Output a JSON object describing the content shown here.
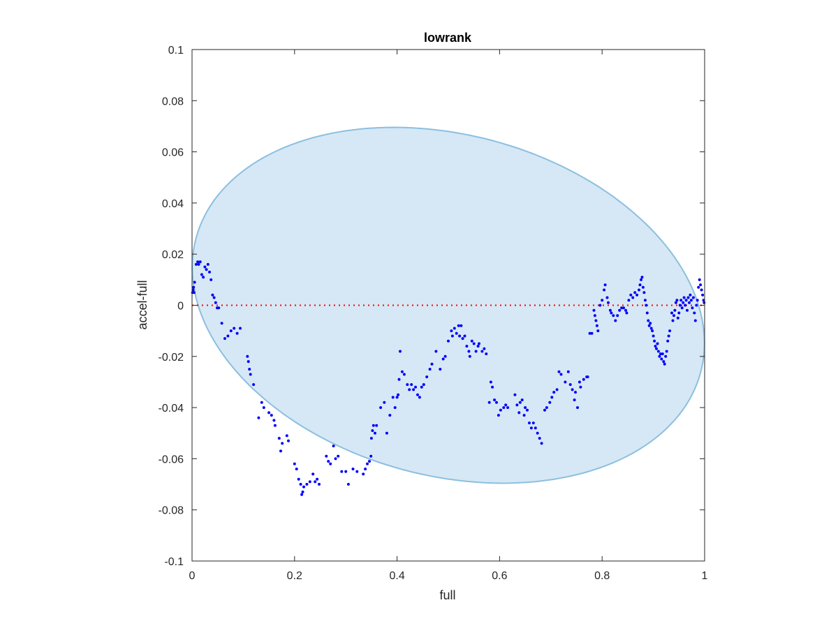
{
  "chart_data": {
    "type": "scatter",
    "title": "lowrank",
    "xlabel": "full",
    "ylabel": "accel-full",
    "xlim": [
      0,
      1
    ],
    "ylim": [
      -0.1,
      0.1
    ],
    "xticks": [
      0,
      0.2,
      0.4,
      0.6,
      0.8,
      1
    ],
    "xtick_labels": [
      "0",
      "0.2",
      "0.4",
      "0.6",
      "0.8",
      "1"
    ],
    "yticks": [
      -0.1,
      -0.08,
      -0.06,
      -0.04,
      -0.02,
      0,
      0.02,
      0.04,
      0.06,
      0.08,
      0.1
    ],
    "ytick_labels": [
      "-0.1",
      "-0.08",
      "-0.06",
      "-0.04",
      "-0.02",
      "0",
      "0.02",
      "0.04",
      "0.06",
      "0.08",
      "0.1"
    ],
    "grid": false,
    "reference_line": {
      "y": 0,
      "style": "dotted",
      "color": "#ff0000"
    },
    "ellipse": {
      "cx": 0.5,
      "cy": 0,
      "rx": 0.5,
      "ry": 0.0675,
      "rotation_deg": -3,
      "fill": "#d6e8f5",
      "stroke": "#8bbfe0"
    },
    "marker_color": "#0000ff",
    "points": [
      [
        0.001,
        0.005
      ],
      [
        0.002,
        0.006
      ],
      [
        0.003,
        0.007
      ],
      [
        0.004,
        0.005
      ],
      [
        0.005,
        0.009
      ],
      [
        0.008,
        0.016
      ],
      [
        0.011,
        0.017
      ],
      [
        0.013,
        0.016
      ],
      [
        0.016,
        0.017
      ],
      [
        0.019,
        0.012
      ],
      [
        0.022,
        0.011
      ],
      [
        0.025,
        0.015
      ],
      [
        0.028,
        0.014
      ],
      [
        0.031,
        0.016
      ],
      [
        0.034,
        0.013
      ],
      [
        0.037,
        0.01
      ],
      [
        0.04,
        0.004
      ],
      [
        0.043,
        0.003
      ],
      [
        0.046,
        0.001
      ],
      [
        0.049,
        -0.001
      ],
      [
        0.052,
        -0.001
      ],
      [
        0.058,
        -0.007
      ],
      [
        0.064,
        -0.013
      ],
      [
        0.07,
        -0.012
      ],
      [
        0.076,
        -0.01
      ],
      [
        0.082,
        -0.009
      ],
      [
        0.088,
        -0.011
      ],
      [
        0.094,
        -0.009
      ],
      [
        0.108,
        -0.02
      ],
      [
        0.11,
        -0.022
      ],
      [
        0.112,
        -0.025
      ],
      [
        0.114,
        -0.027
      ],
      [
        0.12,
        -0.031
      ],
      [
        0.13,
        -0.044
      ],
      [
        0.136,
        -0.038
      ],
      [
        0.14,
        -0.04
      ],
      [
        0.15,
        -0.042
      ],
      [
        0.155,
        -0.043
      ],
      [
        0.16,
        -0.045
      ],
      [
        0.162,
        -0.047
      ],
      [
        0.17,
        -0.052
      ],
      [
        0.173,
        -0.057
      ],
      [
        0.176,
        -0.054
      ],
      [
        0.185,
        -0.051
      ],
      [
        0.188,
        -0.053
      ],
      [
        0.2,
        -0.062
      ],
      [
        0.204,
        -0.064
      ],
      [
        0.208,
        -0.068
      ],
      [
        0.212,
        -0.07
      ],
      [
        0.214,
        -0.074
      ],
      [
        0.216,
        -0.073
      ],
      [
        0.218,
        -0.071
      ],
      [
        0.224,
        -0.07
      ],
      [
        0.23,
        -0.069
      ],
      [
        0.236,
        -0.066
      ],
      [
        0.24,
        -0.069
      ],
      [
        0.244,
        -0.068
      ],
      [
        0.248,
        -0.07
      ],
      [
        0.262,
        -0.059
      ],
      [
        0.266,
        -0.061
      ],
      [
        0.27,
        -0.062
      ],
      [
        0.276,
        -0.055
      ],
      [
        0.28,
        -0.06
      ],
      [
        0.285,
        -0.059
      ],
      [
        0.292,
        -0.065
      ],
      [
        0.3,
        -0.065
      ],
      [
        0.305,
        -0.07
      ],
      [
        0.314,
        -0.064
      ],
      [
        0.322,
        -0.065
      ],
      [
        0.334,
        -0.066
      ],
      [
        0.338,
        -0.064
      ],
      [
        0.342,
        -0.062
      ],
      [
        0.346,
        -0.061
      ],
      [
        0.349,
        -0.059
      ],
      [
        0.35,
        -0.052
      ],
      [
        0.352,
        -0.049
      ],
      [
        0.354,
        -0.047
      ],
      [
        0.357,
        -0.05
      ],
      [
        0.36,
        -0.047
      ],
      [
        0.368,
        -0.04
      ],
      [
        0.375,
        -0.038
      ],
      [
        0.38,
        -0.05
      ],
      [
        0.386,
        -0.043
      ],
      [
        0.392,
        -0.036
      ],
      [
        0.396,
        -0.04
      ],
      [
        0.4,
        -0.036
      ],
      [
        0.402,
        -0.035
      ],
      [
        0.404,
        -0.029
      ],
      [
        0.406,
        -0.018
      ],
      [
        0.41,
        -0.026
      ],
      [
        0.414,
        -0.027
      ],
      [
        0.42,
        -0.031
      ],
      [
        0.424,
        -0.033
      ],
      [
        0.428,
        -0.031
      ],
      [
        0.432,
        -0.033
      ],
      [
        0.436,
        -0.032
      ],
      [
        0.44,
        -0.035
      ],
      [
        0.444,
        -0.036
      ],
      [
        0.448,
        -0.032
      ],
      [
        0.452,
        -0.031
      ],
      [
        0.458,
        -0.028
      ],
      [
        0.464,
        -0.025
      ],
      [
        0.468,
        -0.023
      ],
      [
        0.476,
        -0.018
      ],
      [
        0.484,
        -0.025
      ],
      [
        0.49,
        -0.021
      ],
      [
        0.494,
        -0.02
      ],
      [
        0.5,
        -0.014
      ],
      [
        0.506,
        -0.01
      ],
      [
        0.508,
        -0.012
      ],
      [
        0.512,
        -0.009
      ],
      [
        0.516,
        -0.011
      ],
      [
        0.52,
        -0.008
      ],
      [
        0.522,
        -0.012
      ],
      [
        0.525,
        -0.008
      ],
      [
        0.528,
        -0.013
      ],
      [
        0.532,
        -0.012
      ],
      [
        0.536,
        -0.016
      ],
      [
        0.54,
        -0.018
      ],
      [
        0.542,
        -0.02
      ],
      [
        0.546,
        -0.014
      ],
      [
        0.55,
        -0.015
      ],
      [
        0.554,
        -0.018
      ],
      [
        0.558,
        -0.016
      ],
      [
        0.56,
        -0.015
      ],
      [
        0.566,
        -0.018
      ],
      [
        0.57,
        -0.017
      ],
      [
        0.574,
        -0.019
      ],
      [
        0.58,
        -0.038
      ],
      [
        0.583,
        -0.03
      ],
      [
        0.586,
        -0.032
      ],
      [
        0.59,
        -0.037
      ],
      [
        0.594,
        -0.038
      ],
      [
        0.598,
        -0.043
      ],
      [
        0.602,
        -0.041
      ],
      [
        0.608,
        -0.04
      ],
      [
        0.612,
        -0.039
      ],
      [
        0.616,
        -0.04
      ],
      [
        0.63,
        -0.035
      ],
      [
        0.634,
        -0.039
      ],
      [
        0.638,
        -0.042
      ],
      [
        0.64,
        -0.038
      ],
      [
        0.644,
        -0.037
      ],
      [
        0.648,
        -0.043
      ],
      [
        0.65,
        -0.04
      ],
      [
        0.654,
        -0.041
      ],
      [
        0.658,
        -0.046
      ],
      [
        0.662,
        -0.048
      ],
      [
        0.666,
        -0.046
      ],
      [
        0.67,
        -0.048
      ],
      [
        0.674,
        -0.05
      ],
      [
        0.678,
        -0.052
      ],
      [
        0.682,
        -0.054
      ],
      [
        0.688,
        -0.041
      ],
      [
        0.692,
        -0.04
      ],
      [
        0.698,
        -0.038
      ],
      [
        0.702,
        -0.036
      ],
      [
        0.706,
        -0.034
      ],
      [
        0.712,
        -0.033
      ],
      [
        0.716,
        -0.026
      ],
      [
        0.72,
        -0.027
      ],
      [
        0.728,
        -0.03
      ],
      [
        0.734,
        -0.026
      ],
      [
        0.738,
        -0.031
      ],
      [
        0.742,
        -0.033
      ],
      [
        0.746,
        -0.037
      ],
      [
        0.748,
        -0.034
      ],
      [
        0.752,
        -0.04
      ],
      [
        0.756,
        -0.03
      ],
      [
        0.758,
        -0.032
      ],
      [
        0.764,
        -0.029
      ],
      [
        0.77,
        -0.028
      ],
      [
        0.772,
        -0.028
      ],
      [
        0.776,
        -0.011
      ],
      [
        0.78,
        -0.011
      ],
      [
        0.784,
        -0.002
      ],
      [
        0.786,
        -0.004
      ],
      [
        0.788,
        -0.006
      ],
      [
        0.79,
        -0.008
      ],
      [
        0.792,
        -0.01
      ],
      [
        0.796,
        0.0
      ],
      [
        0.8,
        0.002
      ],
      [
        0.804,
        0.006
      ],
      [
        0.806,
        0.008
      ],
      [
        0.81,
        0.003
      ],
      [
        0.812,
        0.001
      ],
      [
        0.816,
        -0.002
      ],
      [
        0.818,
        -0.003
      ],
      [
        0.822,
        -0.004
      ],
      [
        0.826,
        -0.006
      ],
      [
        0.83,
        -0.004
      ],
      [
        0.834,
        -0.002
      ],
      [
        0.838,
        -0.001
      ],
      [
        0.842,
        -0.001
      ],
      [
        0.846,
        -0.002
      ],
      [
        0.848,
        -0.003
      ],
      [
        0.852,
        0.002
      ],
      [
        0.856,
        0.004
      ],
      [
        0.86,
        0.003
      ],
      [
        0.864,
        0.005
      ],
      [
        0.868,
        0.004
      ],
      [
        0.872,
        0.006
      ],
      [
        0.874,
        0.008
      ],
      [
        0.876,
        0.01
      ],
      [
        0.878,
        0.011
      ],
      [
        0.88,
        0.007
      ],
      [
        0.882,
        0.005
      ],
      [
        0.884,
        0.002
      ],
      [
        0.886,
        0.0
      ],
      [
        0.888,
        -0.003
      ],
      [
        0.89,
        -0.006
      ],
      [
        0.892,
        -0.008
      ],
      [
        0.894,
        -0.007
      ],
      [
        0.896,
        -0.009
      ],
      [
        0.898,
        -0.01
      ],
      [
        0.9,
        -0.012
      ],
      [
        0.902,
        -0.014
      ],
      [
        0.904,
        -0.016
      ],
      [
        0.906,
        -0.017
      ],
      [
        0.908,
        -0.015
      ],
      [
        0.91,
        -0.018
      ],
      [
        0.912,
        -0.02
      ],
      [
        0.914,
        -0.019
      ],
      [
        0.916,
        -0.021
      ],
      [
        0.918,
        -0.019
      ],
      [
        0.92,
        -0.022
      ],
      [
        0.922,
        -0.023
      ],
      [
        0.924,
        -0.02
      ],
      [
        0.926,
        -0.018
      ],
      [
        0.928,
        -0.014
      ],
      [
        0.93,
        -0.012
      ],
      [
        0.932,
        -0.01
      ],
      [
        0.936,
        -0.003
      ],
      [
        0.938,
        -0.006
      ],
      [
        0.94,
        -0.004
      ],
      [
        0.942,
        -0.002
      ],
      [
        0.944,
        0.001
      ],
      [
        0.946,
        0.002
      ],
      [
        0.948,
        -0.005
      ],
      [
        0.95,
        -0.003
      ],
      [
        0.952,
        0.0
      ],
      [
        0.954,
        0.002
      ],
      [
        0.956,
        -0.001
      ],
      [
        0.958,
        0.001
      ],
      [
        0.96,
        0.003
      ],
      [
        0.962,
        0.0
      ],
      [
        0.964,
        0.002
      ],
      [
        0.966,
        -0.002
      ],
      [
        0.968,
        0.003
      ],
      [
        0.97,
        0.001
      ],
      [
        0.972,
        0.004
      ],
      [
        0.974,
        0.002
      ],
      [
        0.976,
        -0.001
      ],
      [
        0.978,
        0.003
      ],
      [
        0.98,
        -0.003
      ],
      [
        0.982,
        -0.006
      ],
      [
        0.984,
        0.0
      ],
      [
        0.986,
        0.002
      ],
      [
        0.988,
        0.007
      ],
      [
        0.99,
        0.01
      ],
      [
        0.992,
        0.008
      ],
      [
        0.994,
        0.006
      ],
      [
        0.996,
        0.004
      ],
      [
        0.998,
        0.002
      ],
      [
        0.999,
        0.001
      ]
    ]
  }
}
